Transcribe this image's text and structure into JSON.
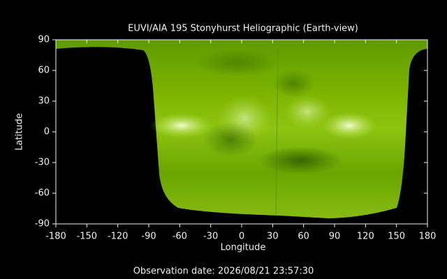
{
  "chart_data": {
    "type": "image",
    "title": "EUVI/AIA 195 Stonyhurst Heliographic (Earth-view)",
    "xlabel": "Longitude",
    "ylabel": "Latitude",
    "xlim": [
      -180,
      180
    ],
    "ylim": [
      -90,
      90
    ],
    "xticks": [
      -180,
      -150,
      -120,
      -90,
      -60,
      -30,
      0,
      30,
      60,
      90,
      120,
      150,
      180
    ],
    "yticks": [
      -90,
      -60,
      -30,
      0,
      30,
      60,
      90
    ],
    "annotation": "Observation date: 2026/08/21 23:57:30"
  }
}
